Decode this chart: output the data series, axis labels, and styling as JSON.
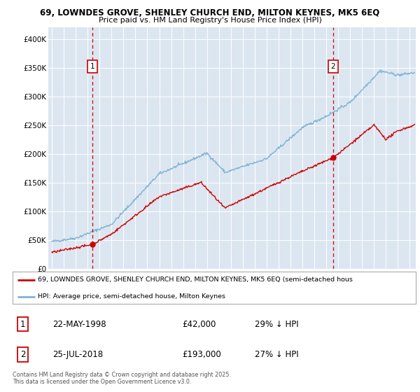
{
  "title_line1": "69, LOWNDES GROVE, SHENLEY CHURCH END, MILTON KEYNES, MK5 6EQ",
  "title_line2": "Price paid vs. HM Land Registry's House Price Index (HPI)",
  "plot_bg_color": "#dce6f1",
  "figure_bg_color": "#ffffff",
  "red_line_color": "#cc0000",
  "blue_line_color": "#7fb3d3",
  "dashed_line_color": "#cc0000",
  "marker1_date_x": 1998.39,
  "marker1_label": "1",
  "marker1_y_red": 42000,
  "marker2_date_x": 2018.56,
  "marker2_label": "2",
  "marker2_y_red": 193000,
  "ylim": [
    0,
    420000
  ],
  "yticks": [
    0,
    50000,
    100000,
    150000,
    200000,
    250000,
    300000,
    350000,
    400000
  ],
  "xlim_start": 1994.7,
  "xlim_end": 2025.5,
  "legend_label_red": "69, LOWNDES GROVE, SHENLEY CHURCH END, MILTON KEYNES, MK5 6EQ (semi-detached hous",
  "legend_label_blue": "HPI: Average price, semi-detached house, Milton Keynes",
  "table_row1": [
    "1",
    "22-MAY-1998",
    "£42,000",
    "29% ↓ HPI"
  ],
  "table_row2": [
    "2",
    "25-JUL-2018",
    "£193,000",
    "27% ↓ HPI"
  ],
  "footer": "Contains HM Land Registry data © Crown copyright and database right 2025.\nThis data is licensed under the Open Government Licence v3.0."
}
